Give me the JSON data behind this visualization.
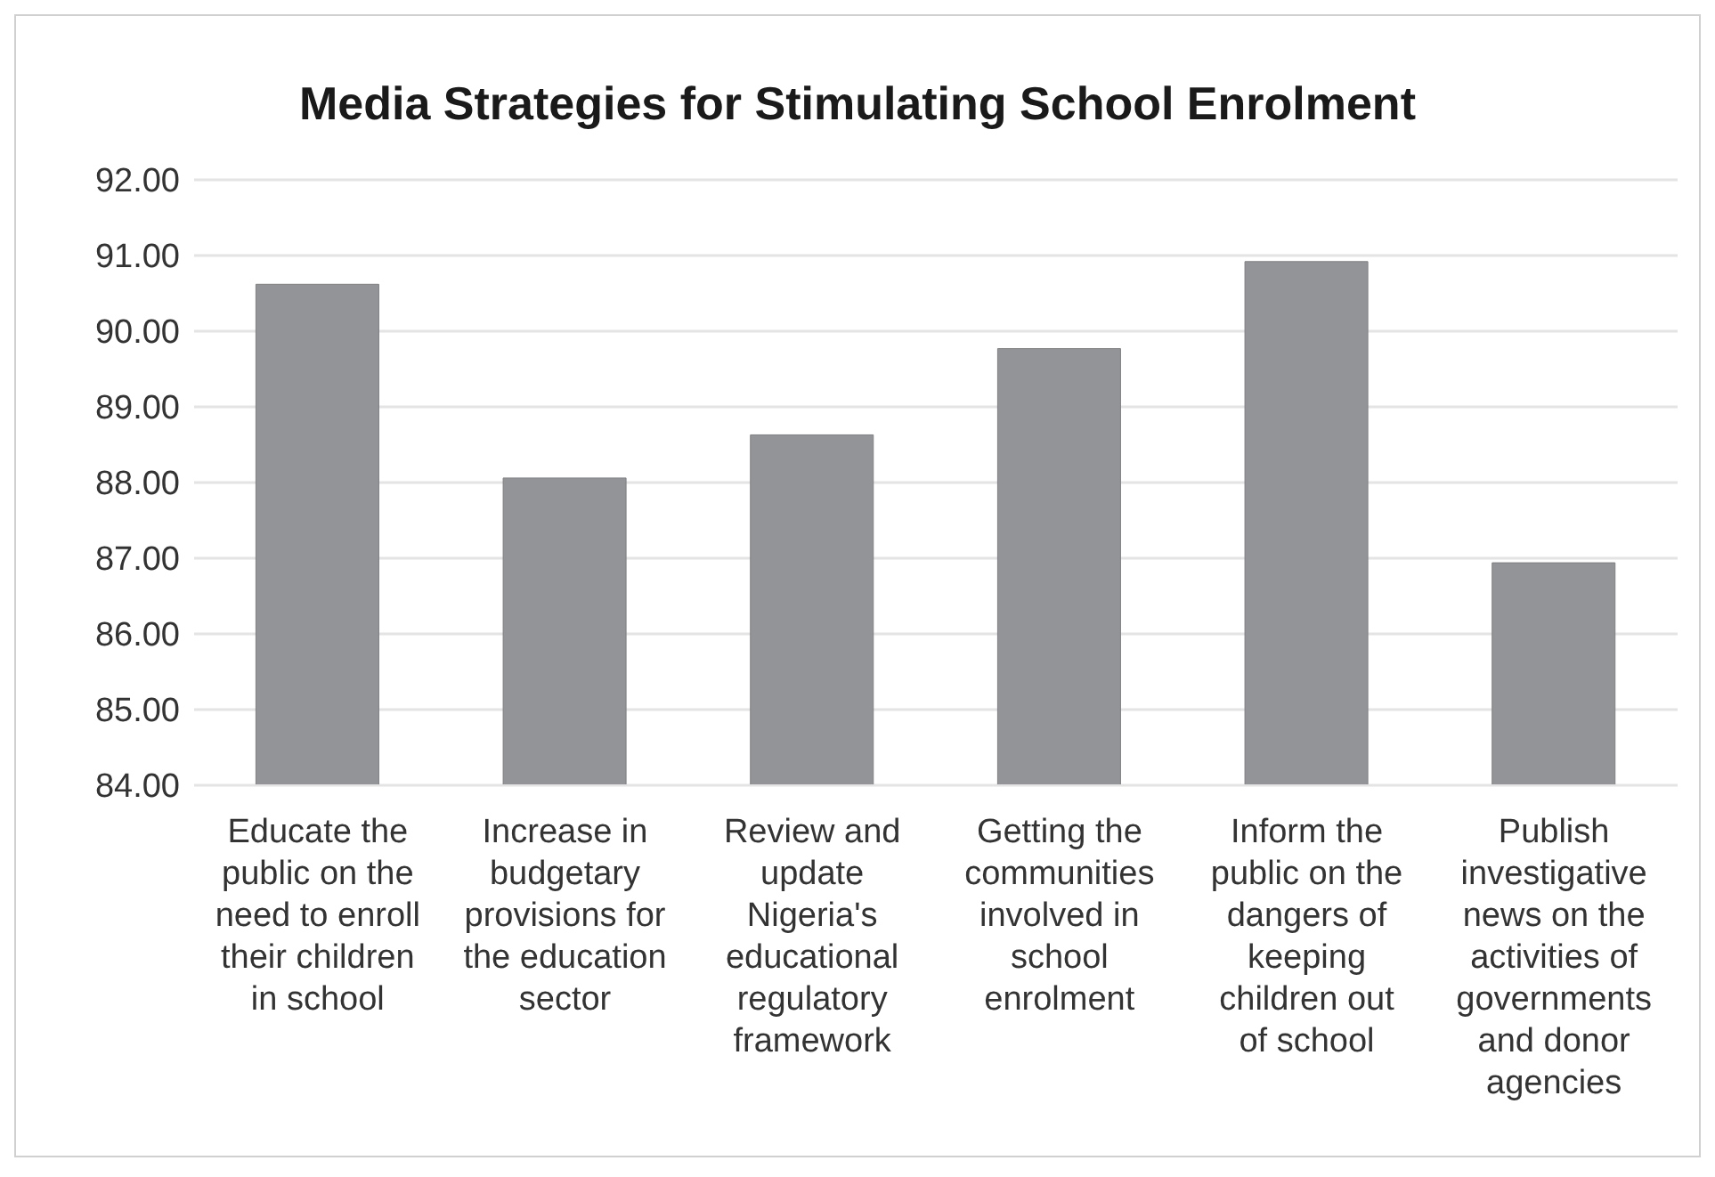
{
  "chart_data": {
    "type": "bar",
    "title": "Media Strategies for Stimulating School Enrolment",
    "categories": [
      "Educate the public on the need to enroll their children in school",
      "Increase in budgetary provisions for the education sector",
      "Review and update Nigeria's educational regulatory framework",
      "Getting the communities involved in school enrolment",
      "Inform the public on the dangers of keeping children out of school",
      "Publish investigative news on the activities of governments and donor agencies"
    ],
    "values": [
      90.62,
      88.06,
      88.63,
      89.77,
      90.92,
      86.94
    ],
    "color": "#939497",
    "ylim": [
      84,
      92
    ],
    "yticks": [
      {
        "value": 84,
        "label": "84.00"
      },
      {
        "value": 85,
        "label": "85.00"
      },
      {
        "value": 86,
        "label": "86.00"
      },
      {
        "value": 87,
        "label": "87.00"
      },
      {
        "value": 88,
        "label": "88.00"
      },
      {
        "value": 89,
        "label": "89.00"
      },
      {
        "value": 90,
        "label": "90.00"
      },
      {
        "value": 91,
        "label": "91.00"
      },
      {
        "value": 92,
        "label": "92.00"
      }
    ],
    "grid": "y"
  }
}
